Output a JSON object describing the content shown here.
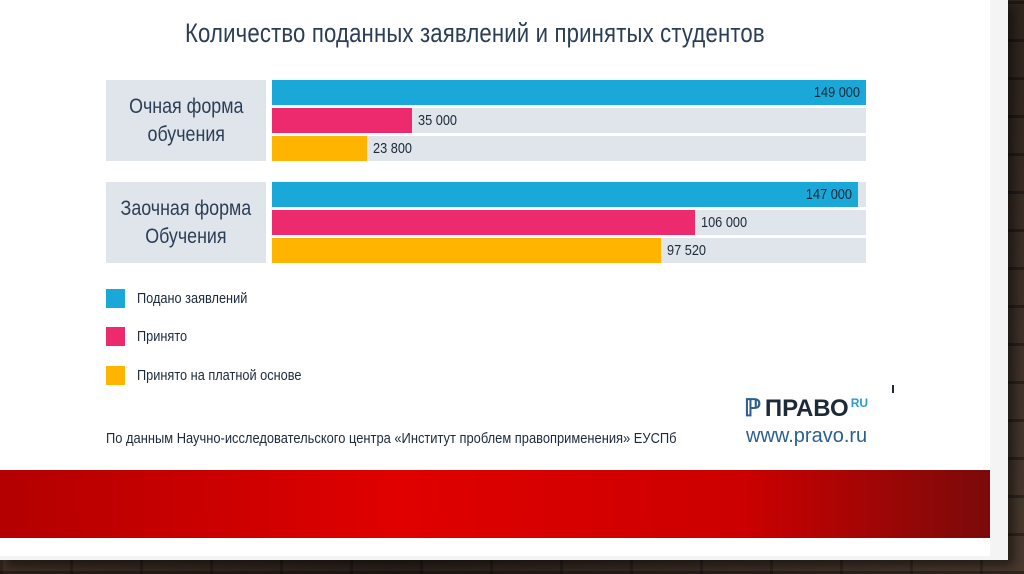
{
  "colors": {
    "applications": "#1aa8d8",
    "accepted": "#ee2a6f",
    "accepted_paid": "#ffb400",
    "track": "#dfe5ea",
    "title": "#2c3e56",
    "band": "#d40000"
  },
  "chart_data": {
    "type": "bar",
    "orientation": "horizontal",
    "title": "Количество поданных заявлений и принятых студентов",
    "categories": [
      "Очная форма обучения",
      "Заочная форма Обучения"
    ],
    "category_lines": [
      [
        "Очная форма",
        "обучения"
      ],
      [
        "Заочная форма",
        "Обучения"
      ]
    ],
    "series": [
      {
        "name": "Подано заявлений",
        "values": [
          149000,
          147000
        ],
        "labels": [
          "149 000",
          "147 000"
        ]
      },
      {
        "name": "Принято",
        "values": [
          35000,
          106000
        ],
        "labels": [
          "35 000",
          "106 000"
        ]
      },
      {
        "name": "Принято на платной основе",
        "values": [
          23800,
          97520
        ],
        "labels": [
          "23 800",
          "97 520"
        ]
      }
    ],
    "xlim": [
      0,
      149000
    ],
    "grid": false,
    "legend_position": "bottom-left"
  },
  "source_note": "По данным Научно-исследовательского центра «Институт проблем правоприменения» ЕУСПб",
  "logo": {
    "mark": "ℙ",
    "text": "ПРАВО",
    "sup": "RU",
    "url": "www.pravo.ru"
  }
}
